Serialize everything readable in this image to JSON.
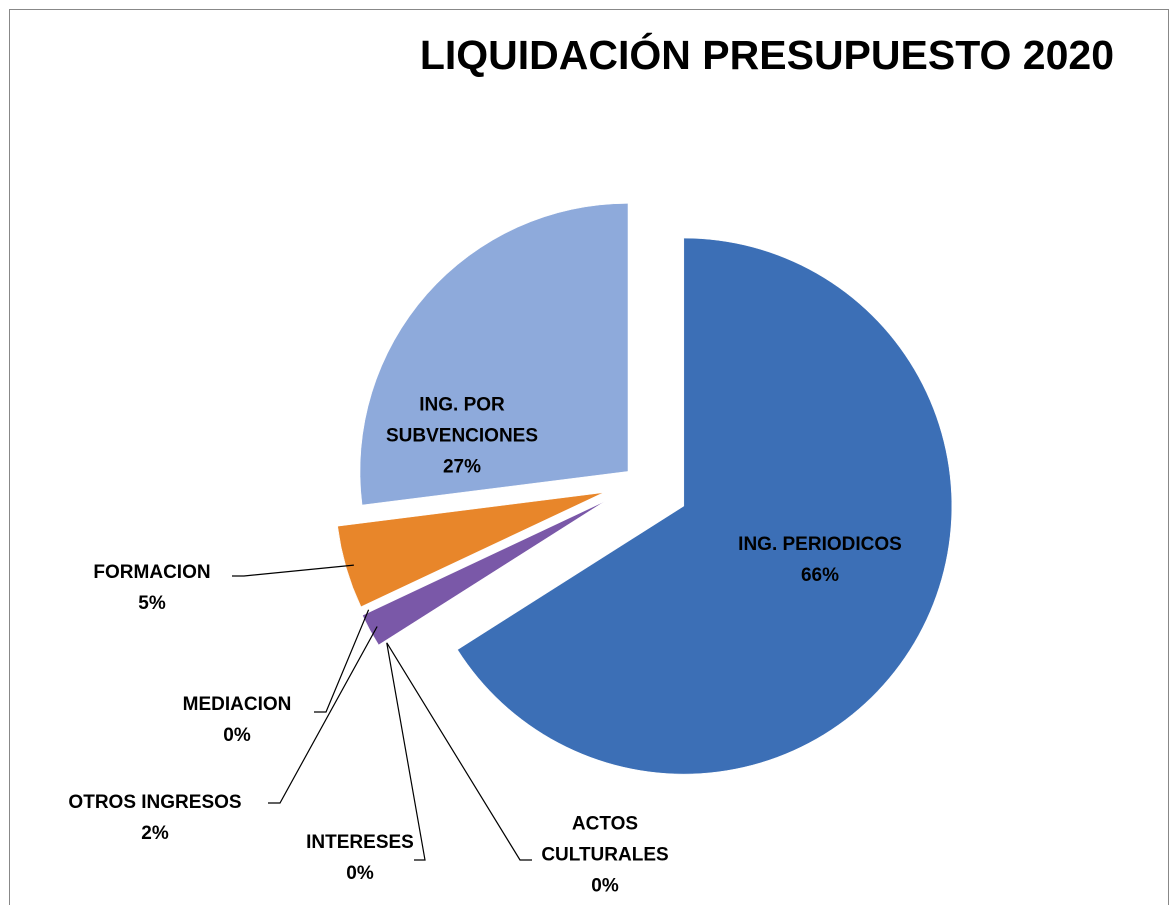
{
  "chart_data": {
    "type": "pie",
    "title": "LIQUIDACIÓN PRESUPUESTO 2020",
    "categories": [
      "ING. PERIODICOS",
      "ACTOS CULTURALES",
      "INTERESES",
      "OTROS INGRESOS",
      "MEDIACION",
      "FORMACION",
      "ING. POR SUBVENCIONES"
    ],
    "values": [
      66,
      0,
      0,
      2,
      0,
      5,
      27
    ],
    "value_labels": [
      "66%",
      "0%",
      "0%",
      "2%",
      "0%",
      "5%",
      "27%"
    ],
    "colors": [
      "#3c6fb6",
      "#c0504d",
      "#9bbb59",
      "#7a58a8",
      "#4bacc6",
      "#e8862a",
      "#8eaadb"
    ]
  }
}
